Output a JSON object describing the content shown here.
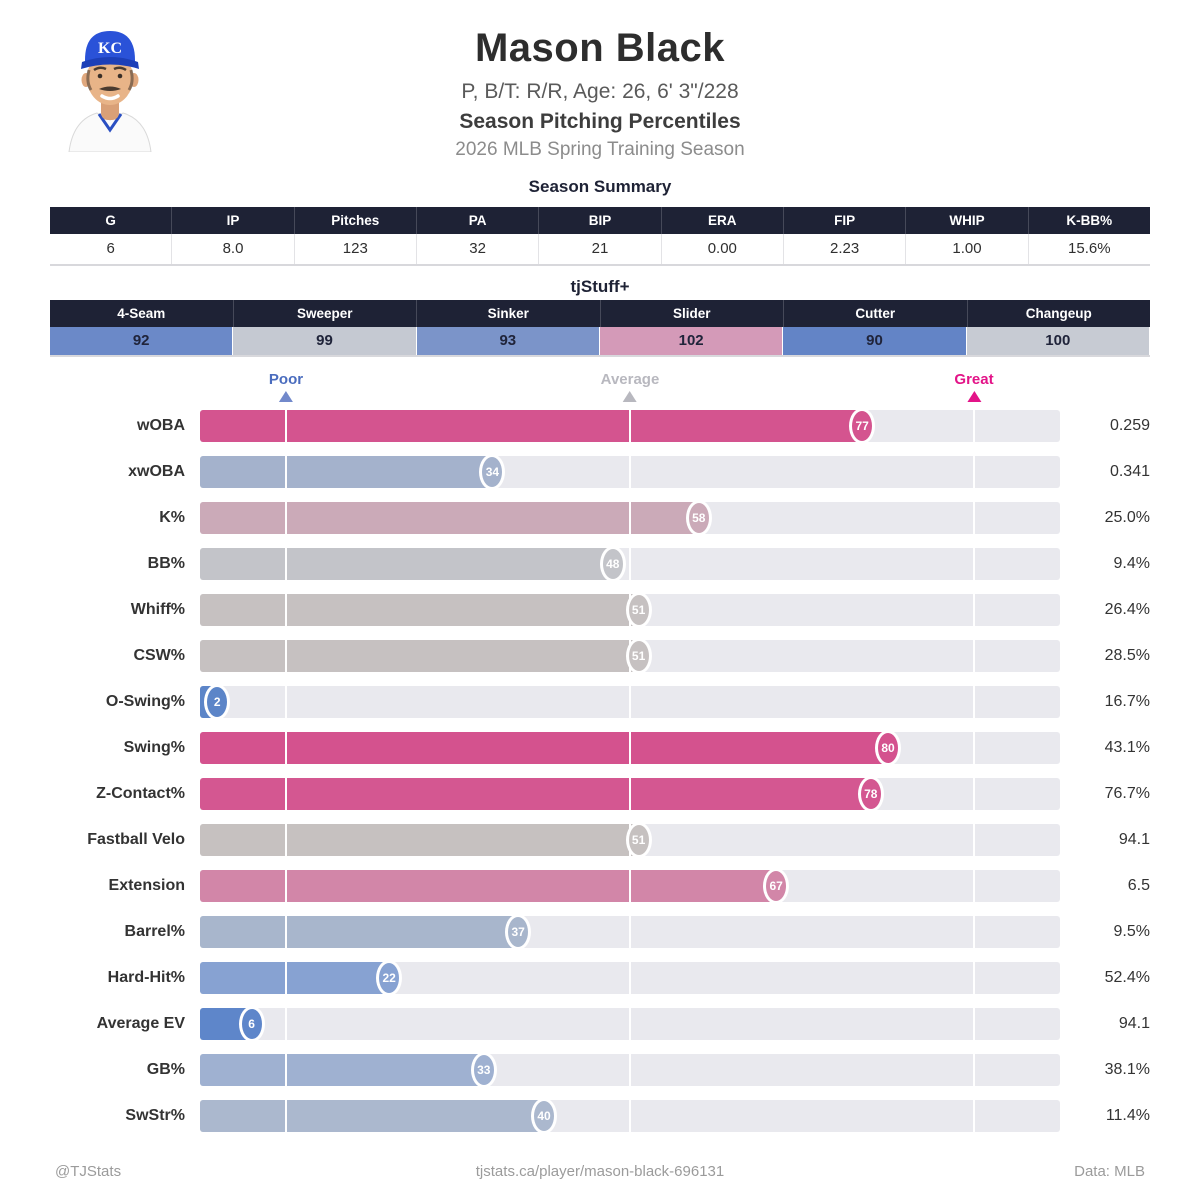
{
  "header": {
    "name": "Mason Black",
    "bio": "P, B/T: R/R, Age: 26, 6' 3\"/228",
    "subtitle": "Season Pitching Percentiles",
    "season": "2026 MLB Spring Training Season",
    "cap_monogram": "KC"
  },
  "season_summary": {
    "title": "Season Summary",
    "columns": [
      "G",
      "IP",
      "Pitches",
      "PA",
      "BIP",
      "ERA",
      "FIP",
      "WHIP",
      "K-BB%"
    ],
    "values": [
      "6",
      "8.0",
      "123",
      "32",
      "21",
      "0.00",
      "2.23",
      "1.00",
      "15.6%"
    ]
  },
  "tjstuff": {
    "title": "tjStuff+",
    "pitches": [
      {
        "label": "4-Seam",
        "value": "92",
        "color": "#6b89c8"
      },
      {
        "label": "Sweeper",
        "value": "99",
        "color": "#c5c9d2"
      },
      {
        "label": "Sinker",
        "value": "93",
        "color": "#7b94c9"
      },
      {
        "label": "Slider",
        "value": "102",
        "color": "#d49ab8"
      },
      {
        "label": "Cutter",
        "value": "90",
        "color": "#6384c6"
      },
      {
        "label": "Changeup",
        "value": "100",
        "color": "#c7cbd3"
      }
    ]
  },
  "chart_data": {
    "type": "bar",
    "orientation": "horizontal",
    "title": "Season Pitching Percentiles",
    "xlim": [
      0,
      100
    ],
    "track_color": "#e9e9ee",
    "gridlines_pct": [
      10,
      50,
      90
    ],
    "axis_markers": [
      {
        "label": "Poor",
        "position_pct": 10,
        "label_color": "#4a6cbe",
        "arrow_color": "#7289cb"
      },
      {
        "label": "Average",
        "position_pct": 50,
        "label_color": "#b8b8bf",
        "arrow_color": "#b8b8bf"
      },
      {
        "label": "Great",
        "position_pct": 90,
        "label_color": "#e31488",
        "arrow_color": "#e31488"
      }
    ],
    "rows": [
      {
        "metric": "wOBA",
        "percentile": 77,
        "value": "0.259",
        "color": "#d4548f"
      },
      {
        "metric": "xwOBA",
        "percentile": 34,
        "value": "0.341",
        "color": "#a4b2cc"
      },
      {
        "metric": "K%",
        "percentile": 58,
        "value": "25.0%",
        "color": "#cbaab8"
      },
      {
        "metric": "BB%",
        "percentile": 48,
        "value": "9.4%",
        "color": "#c3c4c9"
      },
      {
        "metric": "Whiff%",
        "percentile": 51,
        "value": "26.4%",
        "color": "#c6c1c1"
      },
      {
        "metric": "CSW%",
        "percentile": 51,
        "value": "28.5%",
        "color": "#c6c1c1"
      },
      {
        "metric": "O-Swing%",
        "percentile": 2,
        "value": "16.7%",
        "color": "#5c85c8"
      },
      {
        "metric": "Swing%",
        "percentile": 80,
        "value": "43.1%",
        "color": "#d4528e"
      },
      {
        "metric": "Z-Contact%",
        "percentile": 78,
        "value": "76.7%",
        "color": "#d45791"
      },
      {
        "metric": "Fastball Velo",
        "percentile": 51,
        "value": "94.1",
        "color": "#c6c1c0"
      },
      {
        "metric": "Extension",
        "percentile": 67,
        "value": "6.5",
        "color": "#d286a8"
      },
      {
        "metric": "Barrel%",
        "percentile": 37,
        "value": "9.5%",
        "color": "#a8b6cc"
      },
      {
        "metric": "Hard-Hit%",
        "percentile": 22,
        "value": "52.4%",
        "color": "#87a2d2"
      },
      {
        "metric": "Average EV",
        "percentile": 6,
        "value": "94.1",
        "color": "#5e86ca"
      },
      {
        "metric": "GB%",
        "percentile": 33,
        "value": "38.1%",
        "color": "#9fb1d1"
      },
      {
        "metric": "SwStr%",
        "percentile": 40,
        "value": "11.4%",
        "color": "#abb8ce"
      }
    ]
  },
  "footer": {
    "handle": "@TJStats",
    "url": "tjstats.ca/player/mason-black-696131",
    "source": "Data: MLB"
  },
  "colors": {
    "table_header_bg": "#1e2235",
    "track": "#e9e9ee"
  }
}
